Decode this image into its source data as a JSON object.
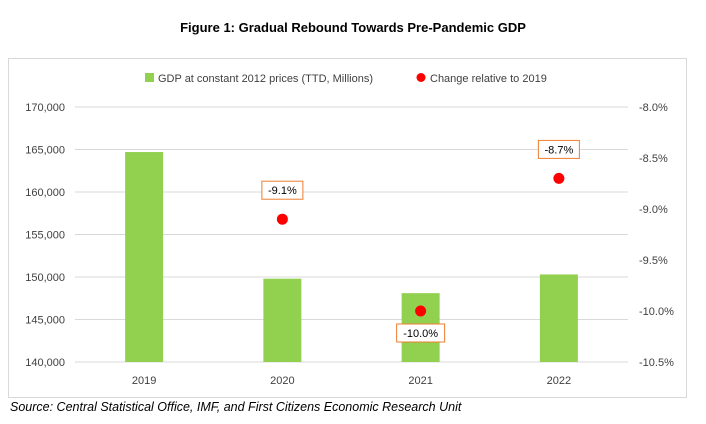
{
  "title": "Figure 1: Gradual Rebound Towards Pre-Pandemic GDP",
  "source": "Source: Central Statistical Office, IMF, and First Citizens Economic Research Unit",
  "chart_data": {
    "type": "bar",
    "categories": [
      "2019",
      "2020",
      "2021",
      "2022"
    ],
    "series": [
      {
        "name": "GDP at constant 2012 prices (TTD, Millions)",
        "type": "bar",
        "axis": "left",
        "color": "#92d050",
        "values": [
          164700,
          149800,
          148100,
          150300
        ]
      },
      {
        "name": "Change relative to 2019",
        "type": "scatter",
        "axis": "right",
        "color": "#ff0000",
        "values": [
          null,
          -9.1,
          -10.0,
          -8.7
        ],
        "labels": [
          "",
          "-9.1%",
          "-10.0%",
          "-8.7%"
        ]
      }
    ],
    "y_left": {
      "lim": [
        140000,
        170000
      ],
      "ticks": [
        140000,
        145000,
        150000,
        155000,
        160000,
        165000,
        170000
      ],
      "tick_labels": [
        "140,000",
        "145,000",
        "150,000",
        "155,000",
        "160,000",
        "165,000",
        "170,000"
      ]
    },
    "y_right": {
      "lim": [
        -10.5,
        -8.0
      ],
      "ticks": [
        -10.5,
        -10.0,
        -9.5,
        -9.0,
        -8.5,
        -8.0
      ],
      "tick_labels": [
        "-10.5%",
        "-10.0%",
        "-9.5%",
        "-9.0%",
        "-8.5%",
        "-8.0%"
      ]
    },
    "grid": true,
    "legend": "top-center",
    "label_border_color": "#ed7d31"
  }
}
